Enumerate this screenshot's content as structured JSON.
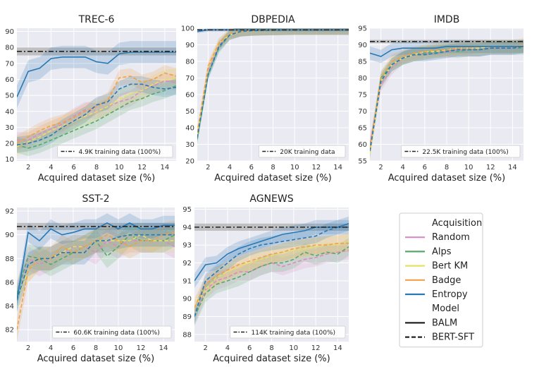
{
  "chart_data": [
    {
      "type": "line",
      "title": "TREC-6",
      "xlabel": "Acquired dataset size (%)",
      "ylabel": "",
      "xlim": [
        1,
        15
      ],
      "ylim": [
        9,
        92
      ],
      "xticks": [
        2,
        4,
        6,
        8,
        10,
        12,
        14
      ],
      "yticks": [
        10,
        20,
        30,
        40,
        50,
        60,
        70,
        80,
        90
      ],
      "x": [
        1,
        2,
        3,
        4,
        5,
        6,
        7,
        8,
        9,
        10,
        11,
        12,
        13,
        14,
        15
      ],
      "full_data": {
        "value": 77.5,
        "band": [
          75,
          80
        ],
        "label": "4.9K training data (100%)"
      },
      "series": [
        {
          "name": "Random",
          "model": "BERT-SFT",
          "values": [
            22,
            22,
            26,
            29,
            32,
            37,
            41,
            40,
            43,
            46,
            48,
            53,
            56,
            59,
            58
          ],
          "band": 5
        },
        {
          "name": "Alps",
          "model": "BERT-SFT",
          "values": [
            19,
            17,
            19,
            22,
            25,
            28,
            31,
            34,
            38,
            42,
            46,
            48,
            51,
            53,
            56
          ],
          "band": 5
        },
        {
          "name": "Bert KM",
          "model": "BERT-SFT",
          "values": [
            18,
            21,
            24,
            28,
            31,
            34,
            37,
            40,
            43,
            48,
            51,
            53,
            57,
            60,
            61
          ],
          "band": 6
        },
        {
          "name": "Badge",
          "model": "BERT-SFT",
          "values": [
            20,
            24,
            28,
            31,
            33,
            36,
            40,
            43,
            47,
            61,
            62,
            58,
            60,
            64,
            62
          ],
          "band": 5
        },
        {
          "name": "Entropy",
          "model": "BERT-SFT",
          "values": [
            19,
            20,
            22,
            25,
            30,
            34,
            38,
            44,
            46,
            54,
            57,
            57,
            55,
            54,
            55
          ],
          "band": 5
        },
        {
          "name": "Entropy",
          "model": "BALM",
          "values": [
            49,
            65,
            67,
            73,
            74,
            74,
            74,
            71,
            70,
            76,
            77,
            77,
            77,
            77,
            77
          ],
          "band": 7
        }
      ]
    },
    {
      "type": "line",
      "title": "DBPEDIA",
      "xlabel": "Acquired dataset size (%)",
      "ylabel": "",
      "xlim": [
        1,
        15
      ],
      "ylim": [
        20,
        100
      ],
      "xticks": [
        2,
        4,
        6,
        8,
        10,
        12,
        14
      ],
      "yticks": [
        20,
        30,
        40,
        50,
        60,
        70,
        80,
        90,
        100
      ],
      "x": [
        1,
        2,
        3,
        4,
        5,
        6,
        7,
        8,
        9,
        10,
        11,
        12,
        13,
        14,
        15
      ],
      "full_data": {
        "value": 99,
        "band": [
          98.5,
          99.5
        ],
        "label": "20K training data"
      },
      "series": [
        {
          "name": "Random",
          "model": "BERT-SFT",
          "values": [
            35,
            75,
            90,
            96,
            98,
            98.5,
            98.7,
            98.8,
            98.9,
            99,
            99,
            99,
            99,
            99,
            99
          ],
          "band": 3
        },
        {
          "name": "Alps",
          "model": "BERT-SFT",
          "values": [
            33,
            72,
            88,
            96,
            98,
            98.5,
            98.7,
            98.8,
            98.9,
            99,
            99,
            99,
            99,
            99,
            99
          ],
          "band": 3
        },
        {
          "name": "Bert KM",
          "model": "BERT-SFT",
          "values": [
            36,
            76,
            91,
            96,
            98,
            98.5,
            98.7,
            98.8,
            98.9,
            99,
            99,
            99,
            99,
            99,
            99
          ],
          "band": 3
        },
        {
          "name": "Badge",
          "model": "BERT-SFT",
          "values": [
            37,
            77,
            91,
            97,
            98,
            98.5,
            98.7,
            98.8,
            98.9,
            99,
            99,
            99,
            99,
            99,
            99
          ],
          "band": 3
        },
        {
          "name": "Entropy",
          "model": "BERT-SFT",
          "values": [
            34,
            72,
            89,
            96,
            98,
            98.5,
            98.7,
            98.8,
            98.9,
            99,
            99,
            99,
            99,
            99,
            99
          ],
          "band": 3
        },
        {
          "name": "Entropy",
          "model": "BALM",
          "values": [
            98,
            99,
            99,
            99,
            99,
            99,
            99,
            99,
            99,
            99,
            99,
            99,
            99,
            99,
            99
          ],
          "band": 1
        }
      ]
    },
    {
      "type": "line",
      "title": "IMDB",
      "xlabel": "Acquired dataset size (%)",
      "ylabel": "",
      "xlim": [
        1,
        15
      ],
      "ylim": [
        55,
        95
      ],
      "xticks": [
        2,
        4,
        6,
        8,
        10,
        12,
        14
      ],
      "yticks": [
        55,
        60,
        65,
        70,
        75,
        80,
        85,
        90,
        95
      ],
      "x": [
        1,
        2,
        3,
        4,
        5,
        6,
        7,
        8,
        9,
        10,
        11,
        12,
        13,
        14,
        15
      ],
      "full_data": {
        "value": 91,
        "band": [
          90.5,
          91.5
        ],
        "label": "22.5K training data (100%)"
      },
      "series": [
        {
          "name": "Random",
          "model": "BERT-SFT",
          "values": [
            60,
            78,
            83,
            86,
            87,
            87.5,
            88,
            88,
            88.5,
            88.5,
            88.5,
            89,
            89,
            89,
            89.5
          ],
          "band": 2
        },
        {
          "name": "Alps",
          "model": "BERT-SFT",
          "values": [
            58,
            80,
            84,
            86,
            87,
            87.5,
            88,
            88.5,
            88,
            88.5,
            88.5,
            89,
            89,
            89,
            89
          ],
          "band": 2
        },
        {
          "name": "Bert KM",
          "model": "BERT-SFT",
          "values": [
            57,
            79,
            84,
            86,
            87,
            88,
            88,
            88.5,
            89,
            89,
            89,
            89.5,
            89.5,
            89.5,
            89.5
          ],
          "band": 2
        },
        {
          "name": "Badge",
          "model": "BERT-SFT",
          "values": [
            59,
            80,
            85,
            86.5,
            87.5,
            88,
            88.5,
            88.5,
            89,
            89,
            89.5,
            89.5,
            89.5,
            89.5,
            90
          ],
          "band": 2
        },
        {
          "name": "Entropy",
          "model": "BERT-SFT",
          "values": [
            58,
            79,
            84,
            86,
            87,
            87,
            87.5,
            88,
            88.5,
            88.5,
            88.5,
            89,
            89,
            89,
            89.5
          ],
          "band": 2
        },
        {
          "name": "Entropy",
          "model": "BALM",
          "values": [
            87.5,
            86.5,
            88.5,
            89,
            89,
            89,
            89,
            89.5,
            89.5,
            89.5,
            89.5,
            89.5,
            89.5,
            89.5,
            89.5
          ],
          "band": 2
        }
      ]
    },
    {
      "type": "line",
      "title": "SST-2",
      "xlabel": "Acquired dataset size (%)",
      "ylabel": "",
      "xlim": [
        1,
        15
      ],
      "ylim": [
        81,
        92.3
      ],
      "xticks": [
        2,
        4,
        6,
        8,
        10,
        12,
        14
      ],
      "yticks": [
        82,
        84,
        86,
        88,
        90,
        92
      ],
      "x": [
        1,
        2,
        3,
        4,
        5,
        6,
        7,
        8,
        9,
        10,
        11,
        12,
        13,
        14,
        15
      ],
      "full_data": {
        "value": 90.7,
        "band": [
          90.4,
          91.0
        ],
        "label": "60.6K training data (100%)"
      },
      "series": [
        {
          "name": "Random",
          "model": "BERT-SFT",
          "values": [
            85,
            88,
            87.5,
            88,
            88.5,
            89,
            89,
            88.5,
            89.5,
            89,
            89.5,
            89.5,
            89.5,
            89.5,
            89
          ],
          "band": 1
        },
        {
          "name": "Alps",
          "model": "BERT-SFT",
          "values": [
            85,
            88.2,
            88,
            87.5,
            88,
            88.5,
            89,
            89.5,
            88.2,
            89,
            90,
            89.5,
            89.5,
            89.5,
            90
          ],
          "band": 1
        },
        {
          "name": "Bert KM",
          "model": "BERT-SFT",
          "values": [
            84.5,
            87,
            88,
            88,
            88.5,
            89,
            89,
            89.5,
            89.5,
            89.5,
            89.5,
            90,
            89.5,
            89.5,
            89.5
          ],
          "band": 1
        },
        {
          "name": "Badge",
          "model": "BERT-SFT",
          "values": [
            82,
            87,
            88,
            88,
            89,
            88.5,
            89,
            89.5,
            90,
            89.5,
            89,
            89.5,
            89.5,
            90,
            90.2
          ],
          "band": 1
        },
        {
          "name": "Entropy",
          "model": "BERT-SFT",
          "values": [
            84.5,
            87.5,
            88,
            88,
            88.5,
            88.5,
            88.5,
            89.5,
            89.5,
            89.8,
            90,
            90,
            90,
            90,
            90
          ],
          "band": 1
        },
        {
          "name": "Entropy",
          "model": "BALM",
          "values": [
            84.5,
            90.2,
            89.5,
            90.5,
            90,
            90.2,
            90.5,
            90.5,
            91,
            90.5,
            91,
            90.5,
            90.5,
            90.8,
            90.8
          ],
          "band": 0.8
        }
      ]
    },
    {
      "type": "line",
      "title": "AGNEWS",
      "xlabel": "Acquired dataset size (%)",
      "ylabel": "",
      "xlim": [
        1,
        15
      ],
      "ylim": [
        87.6,
        95.1
      ],
      "xticks": [
        2,
        4,
        6,
        8,
        10,
        12,
        14
      ],
      "yticks": [
        88,
        89,
        90,
        91,
        92,
        93,
        94,
        95
      ],
      "x": [
        1,
        2,
        3,
        4,
        5,
        6,
        7,
        8,
        9,
        10,
        11,
        12,
        13,
        14,
        15
      ],
      "full_data": {
        "value": 94,
        "band": [
          93.8,
          94.2
        ],
        "label": "114K training data (100%)"
      },
      "series": [
        {
          "name": "Random",
          "model": "BERT-SFT",
          "values": [
            89,
            90.5,
            91,
            91.2,
            91.5,
            91.5,
            91.8,
            92,
            91.8,
            92,
            92.2,
            92.3,
            92.5,
            92.6,
            92.7
          ],
          "band": 0.5
        },
        {
          "name": "Alps",
          "model": "BERT-SFT",
          "values": [
            89,
            90.3,
            90.8,
            91,
            91.2,
            91.5,
            91.8,
            92,
            92,
            92.2,
            92.6,
            92.4,
            92.6,
            92.5,
            92.9
          ],
          "band": 0.5
        },
        {
          "name": "Bert KM",
          "model": "BERT-SFT",
          "values": [
            89.5,
            90.5,
            91.2,
            91.5,
            91.8,
            92,
            92.2,
            92.4,
            92.6,
            92.7,
            92.8,
            92.9,
            93,
            93,
            93.2
          ],
          "band": 0.5
        },
        {
          "name": "Badge",
          "model": "BERT-SFT",
          "values": [
            89.5,
            90.8,
            91.3,
            91.6,
            91.9,
            92.1,
            92.3,
            92.5,
            92.6,
            92.8,
            92.9,
            93,
            93,
            93.1,
            93.1
          ],
          "band": 0.5
        },
        {
          "name": "Entropy",
          "model": "BERT-SFT",
          "values": [
            89,
            91,
            91.5,
            92,
            92.5,
            92.8,
            93,
            93.1,
            93.2,
            93.3,
            93.4,
            93.5,
            93.8,
            94,
            94
          ],
          "band": 0.4
        },
        {
          "name": "Entropy",
          "model": "BALM",
          "values": [
            91,
            91.9,
            92,
            92.5,
            92.8,
            93,
            93.2,
            93.4,
            93.6,
            93.7,
            93.8,
            94,
            94,
            94,
            94.2
          ],
          "band": 0.4
        }
      ]
    }
  ],
  "legend": {
    "acquisition_title": "Acquisition",
    "acquisition": [
      {
        "name": "Random",
        "color": "#da8bc3"
      },
      {
        "name": "Alps",
        "color": "#55a868"
      },
      {
        "name": "Bert KM",
        "color": "#e6e064"
      },
      {
        "name": "Badge",
        "color": "#f0a048"
      },
      {
        "name": "Entropy",
        "color": "#2878b5"
      }
    ],
    "model_title": "Model",
    "models": [
      {
        "name": "BALM",
        "dash": "solid"
      },
      {
        "name": "BERT-SFT",
        "dash": "dashed"
      }
    ]
  },
  "colors": {
    "Random": "#da8bc3",
    "Alps": "#55a868",
    "Bert KM": "#e6e064",
    "Badge": "#f0a048",
    "Entropy": "#2878b5",
    "full_data": "#222222"
  }
}
